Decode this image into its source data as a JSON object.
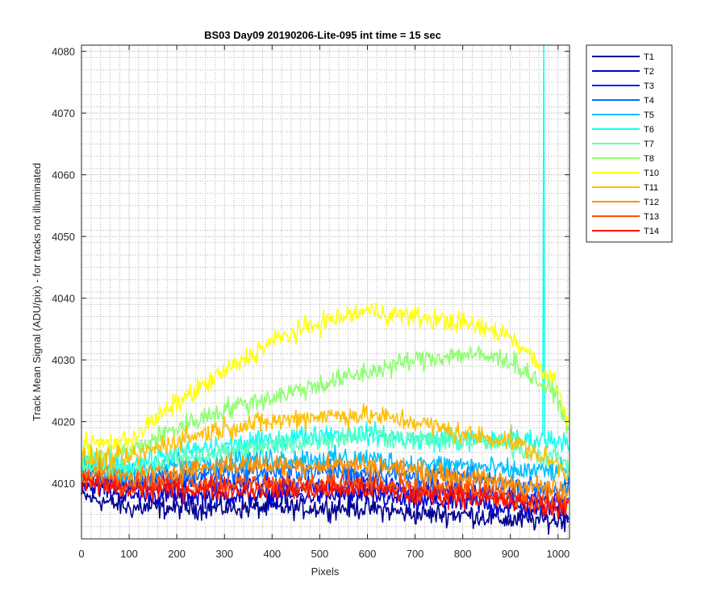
{
  "chart_data": {
    "type": "line",
    "title": "BS03 Day09 20190206-Lite-095 int time = 15 sec",
    "xlabel": "Pixels",
    "ylabel": "Track Mean Signal (ADU/pix) - for tracks not illuminated",
    "xlim": [
      0,
      1024
    ],
    "ylim": [
      4001,
      4081
    ],
    "xticks": [
      0,
      100,
      200,
      300,
      400,
      500,
      600,
      700,
      800,
      900,
      1000
    ],
    "yticks": [
      4010,
      4020,
      4030,
      4040,
      4050,
      4060,
      4070,
      4080
    ],
    "grid": true,
    "minor_grid": true,
    "legend_position": "outside-top-right",
    "noise_amplitude": 1.5,
    "spike": {
      "series": "T6",
      "x": 970,
      "y": 4081
    },
    "series": [
      {
        "name": "T1",
        "color": "#00008F",
        "x": [
          0,
          100,
          200,
          300,
          400,
          500,
          600,
          700,
          800,
          900,
          1000,
          1023
        ],
        "values": [
          4008,
          4006,
          4006,
          4006,
          4006,
          4006,
          4006,
          4005,
          4005,
          4004,
          4004,
          4004
        ]
      },
      {
        "name": "T2",
        "color": "#0000CF",
        "x": [
          0,
          100,
          200,
          300,
          400,
          500,
          600,
          700,
          800,
          900,
          1000,
          1023
        ],
        "values": [
          4010,
          4008,
          4008,
          4008,
          4008,
          4008,
          4008,
          4007,
          4007,
          4006,
          4006,
          4005
        ]
      },
      {
        "name": "T3",
        "color": "#0020FF",
        "x": [
          0,
          100,
          200,
          300,
          400,
          500,
          600,
          700,
          800,
          900,
          1000,
          1023
        ],
        "values": [
          4011,
          4010,
          4010,
          4010,
          4010,
          4010,
          4010,
          4009,
          4009,
          4008,
          4007,
          4007
        ]
      },
      {
        "name": "T4",
        "color": "#0070FF",
        "x": [
          0,
          100,
          200,
          300,
          400,
          500,
          600,
          700,
          800,
          900,
          1000,
          1023
        ],
        "values": [
          4012,
          4011,
          4011,
          4012,
          4012,
          4012,
          4012,
          4011,
          4011,
          4010,
          4009,
          4009
        ]
      },
      {
        "name": "T5",
        "color": "#00BFFF",
        "x": [
          0,
          100,
          200,
          300,
          400,
          500,
          600,
          700,
          800,
          900,
          1000,
          1023
        ],
        "values": [
          4013,
          4012,
          4013,
          4014,
          4014,
          4014,
          4014,
          4013,
          4013,
          4012,
          4012,
          4012
        ]
      },
      {
        "name": "T6",
        "color": "#10FFEF",
        "x": [
          0,
          100,
          200,
          300,
          400,
          500,
          600,
          700,
          800,
          900,
          1000,
          1023
        ],
        "values": [
          4013,
          4013,
          4015,
          4016,
          4017,
          4018,
          4018,
          4017,
          4017,
          4017,
          4017,
          4017
        ]
      },
      {
        "name": "T7",
        "color": "#60FFBF",
        "x": [
          0,
          100,
          200,
          300,
          400,
          500,
          600,
          700,
          800,
          900,
          1000,
          1023
        ],
        "values": [
          4012,
          4012,
          4014,
          4015,
          4016,
          4017,
          4018,
          4017,
          4017,
          4016,
          4014,
          4013
        ]
      },
      {
        "name": "T8",
        "color": "#8FFF70",
        "x": [
          0,
          100,
          200,
          300,
          400,
          500,
          600,
          700,
          800,
          900,
          1000,
          1023
        ],
        "values": [
          4014,
          4015,
          4019,
          4022,
          4024,
          4026,
          4028,
          4030,
          4031,
          4030,
          4024,
          4018
        ]
      },
      {
        "name": "T10",
        "color": "#FFFF10",
        "x": [
          0,
          100,
          200,
          300,
          400,
          500,
          600,
          700,
          800,
          900,
          1000,
          1023
        ],
        "values": [
          4016,
          4017,
          4023,
          4028,
          4033,
          4036,
          4038,
          4037,
          4036,
          4034,
          4026,
          4019
        ]
      },
      {
        "name": "T11",
        "color": "#FFBF00",
        "x": [
          0,
          100,
          200,
          300,
          400,
          500,
          600,
          700,
          800,
          900,
          1000,
          1023
        ],
        "values": [
          4014,
          4014,
          4017,
          4019,
          4020,
          4021,
          4021,
          4020,
          4018,
          4017,
          4013,
          4011
        ]
      },
      {
        "name": "T12",
        "color": "#FF8F00",
        "x": [
          0,
          100,
          200,
          300,
          400,
          500,
          600,
          700,
          800,
          900,
          1000,
          1023
        ],
        "values": [
          4012,
          4011,
          4012,
          4013,
          4013,
          4013,
          4013,
          4012,
          4011,
          4010,
          4009,
          4008
        ]
      },
      {
        "name": "T13",
        "color": "#FF5000",
        "x": [
          0,
          100,
          200,
          300,
          400,
          500,
          600,
          700,
          800,
          900,
          1000,
          1023
        ],
        "values": [
          4011,
          4010,
          4010,
          4010,
          4010,
          4010,
          4010,
          4009,
          4009,
          4008,
          4007,
          4007
        ]
      },
      {
        "name": "T14",
        "color": "#FF1000",
        "x": [
          0,
          100,
          200,
          300,
          400,
          500,
          600,
          700,
          800,
          900,
          1000,
          1023
        ],
        "values": [
          4010,
          4009,
          4009,
          4009,
          4009,
          4009,
          4009,
          4008,
          4008,
          4007,
          4006,
          4006
        ]
      }
    ]
  }
}
